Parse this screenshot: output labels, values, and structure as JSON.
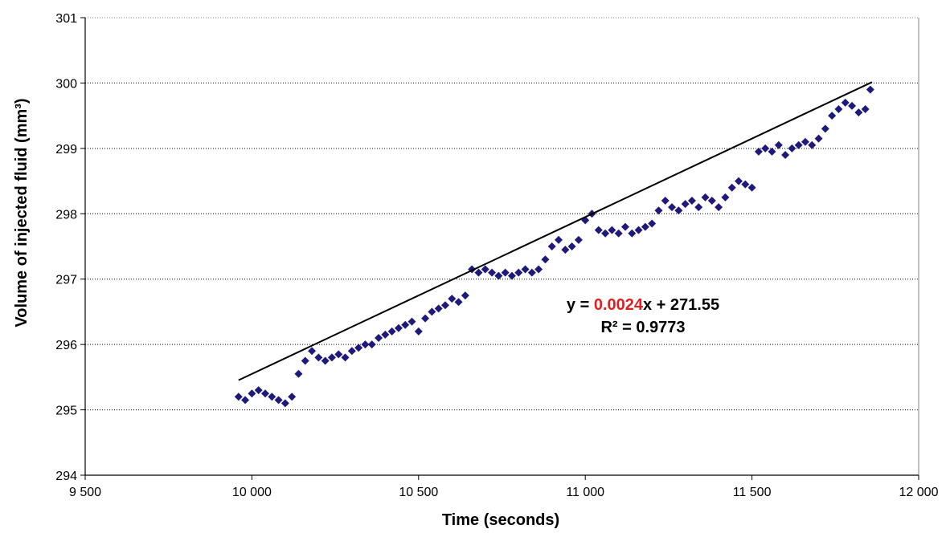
{
  "chart_data": {
    "type": "scatter",
    "title": "",
    "xlabel": "Time (seconds)",
    "ylabel": "Volume of injected fluid (mm³)",
    "xlim": [
      9500,
      12000
    ],
    "ylim": [
      294,
      301
    ],
    "x_ticks": [
      9500,
      10000,
      10500,
      11000,
      11500,
      12000
    ],
    "x_tick_labels": [
      "9 500",
      "10 000",
      "10 500",
      "11 000",
      "11 500",
      "12 000"
    ],
    "y_ticks": [
      294,
      295,
      296,
      297,
      298,
      299,
      300,
      301
    ],
    "y_tick_labels": [
      "294",
      "295",
      "296",
      "297",
      "298",
      "299",
      "300",
      "301"
    ],
    "grid": "horizontal dotted",
    "legend": "none",
    "colors": {
      "markers": "#1f1a7a",
      "trendline": "#000000",
      "slope_highlight": "#e02020",
      "grid": "#000000"
    },
    "marker_shape": "diamond",
    "series": [
      {
        "values": [
          [
            9960,
            295.2
          ],
          [
            9980,
            295.15
          ],
          [
            10000,
            295.25
          ],
          [
            10020,
            295.3
          ],
          [
            10040,
            295.25
          ],
          [
            10060,
            295.2
          ],
          [
            10080,
            295.15
          ],
          [
            10100,
            295.1
          ],
          [
            10120,
            295.2
          ],
          [
            10140,
            295.55
          ],
          [
            10160,
            295.75
          ],
          [
            10180,
            295.9
          ],
          [
            10200,
            295.8
          ],
          [
            10220,
            295.75
          ],
          [
            10240,
            295.8
          ],
          [
            10260,
            295.85
          ],
          [
            10280,
            295.8
          ],
          [
            10300,
            295.9
          ],
          [
            10320,
            295.95
          ],
          [
            10340,
            296.0
          ],
          [
            10360,
            296.0
          ],
          [
            10380,
            296.1
          ],
          [
            10400,
            296.15
          ],
          [
            10420,
            296.2
          ],
          [
            10440,
            296.25
          ],
          [
            10460,
            296.3
          ],
          [
            10480,
            296.35
          ],
          [
            10500,
            296.2
          ],
          [
            10520,
            296.4
          ],
          [
            10540,
            296.5
          ],
          [
            10560,
            296.55
          ],
          [
            10580,
            296.6
          ],
          [
            10600,
            296.7
          ],
          [
            10620,
            296.65
          ],
          [
            10640,
            296.75
          ],
          [
            10660,
            297.15
          ],
          [
            10680,
            297.1
          ],
          [
            10700,
            297.15
          ],
          [
            10720,
            297.1
          ],
          [
            10740,
            297.05
          ],
          [
            10760,
            297.1
          ],
          [
            10780,
            297.05
          ],
          [
            10800,
            297.1
          ],
          [
            10820,
            297.15
          ],
          [
            10840,
            297.1
          ],
          [
            10860,
            297.15
          ],
          [
            10880,
            297.3
          ],
          [
            10900,
            297.5
          ],
          [
            10920,
            297.6
          ],
          [
            10940,
            297.45
          ],
          [
            10960,
            297.5
          ],
          [
            10980,
            297.6
          ],
          [
            11000,
            297.9
          ],
          [
            11020,
            298.0
          ],
          [
            11040,
            297.75
          ],
          [
            11060,
            297.7
          ],
          [
            11080,
            297.75
          ],
          [
            11100,
            297.7
          ],
          [
            11120,
            297.8
          ],
          [
            11140,
            297.7
          ],
          [
            11160,
            297.75
          ],
          [
            11180,
            297.8
          ],
          [
            11200,
            297.85
          ],
          [
            11220,
            298.05
          ],
          [
            11240,
            298.2
          ],
          [
            11260,
            298.1
          ],
          [
            11280,
            298.05
          ],
          [
            11300,
            298.15
          ],
          [
            11320,
            298.2
          ],
          [
            11340,
            298.1
          ],
          [
            11360,
            298.25
          ],
          [
            11380,
            298.2
          ],
          [
            11400,
            298.1
          ],
          [
            11420,
            298.25
          ],
          [
            11440,
            298.4
          ],
          [
            11460,
            298.5
          ],
          [
            11480,
            298.45
          ],
          [
            11500,
            298.4
          ],
          [
            11520,
            298.95
          ],
          [
            11540,
            299.0
          ],
          [
            11560,
            298.95
          ],
          [
            11580,
            299.05
          ],
          [
            11600,
            298.9
          ],
          [
            11620,
            299.0
          ],
          [
            11640,
            299.05
          ],
          [
            11660,
            299.1
          ],
          [
            11680,
            299.05
          ],
          [
            11700,
            299.15
          ],
          [
            11720,
            299.3
          ],
          [
            11740,
            299.5
          ],
          [
            11760,
            299.6
          ],
          [
            11780,
            299.7
          ],
          [
            11800,
            299.65
          ],
          [
            11820,
            299.55
          ],
          [
            11840,
            299.6
          ],
          [
            11855,
            299.9
          ]
        ]
      }
    ],
    "trendline": {
      "type": "linear",
      "x_range": [
        9960,
        11860
      ],
      "slope": 0.0024,
      "intercept": 271.55
    },
    "annotations": {
      "equation_prefix": "y = ",
      "equation_slope": "0.0024",
      "equation_suffix": "x + 271.55",
      "r_squared": "R² = 0.9773"
    }
  }
}
